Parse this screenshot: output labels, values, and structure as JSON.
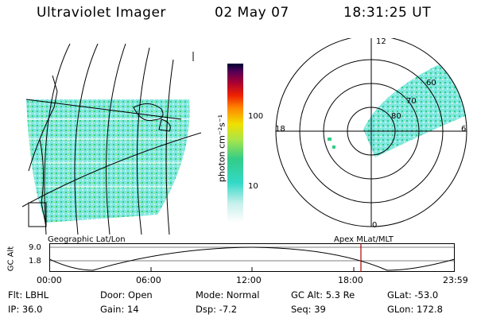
{
  "header": {
    "instrument": "Ultraviolet Imager",
    "date": "02 May 07",
    "time": "18:31:25 UT"
  },
  "colorbar": {
    "unit_label": "photon cm⁻²s⁻¹",
    "ticks": [
      "100",
      "10"
    ]
  },
  "polar_plot": {
    "mlt_labels": {
      "top": "12",
      "left": "18",
      "right": "6",
      "bottom": "0"
    },
    "mlat_labels": [
      "60",
      "70",
      "80"
    ]
  },
  "map_caption": "Geographic Lat/Lon",
  "polar_caption": "Apex MLat/MLT",
  "altitude_strip": {
    "ylabel": "GC Alt",
    "yticks": [
      "9.0",
      "1.8"
    ],
    "xticks": [
      "00:00",
      "06:00",
      "12:00",
      "18:00",
      "23:59"
    ]
  },
  "info": {
    "flt": "Flt: LBHL",
    "ip": "IP: 36.0",
    "door": "Door: Open",
    "gain": "Gain: 14",
    "mode": "Mode: Normal",
    "dsp": "Dsp:    -7.2",
    "gcalt": "GC Alt: 5.3 Re",
    "seq": "Seq: 39",
    "glat": "GLat: -53.0",
    "glon": "GLon: 172.8"
  },
  "colors": {
    "emission_low": "#7fe8df",
    "emission_mid": "#33cc88",
    "emission_high": "#a8e64a",
    "marker_line": "#aa0000"
  }
}
